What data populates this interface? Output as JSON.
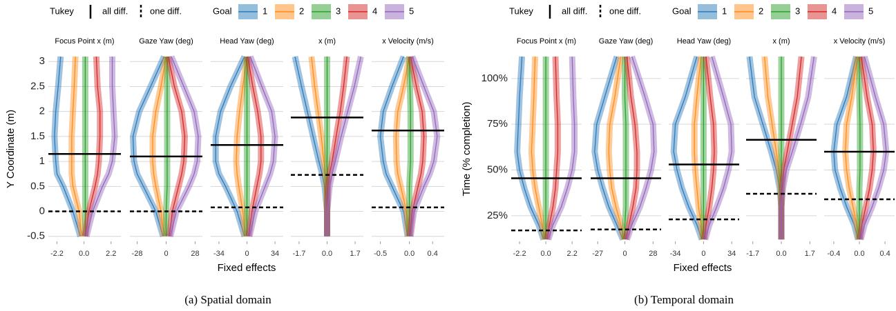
{
  "chart_data": [
    {
      "type": "line",
      "caption": "(a) Spatial domain",
      "y_label": "Y Coordinate (m)",
      "x_label": "Fixed effects",
      "legend": {
        "tukey": "Tukey",
        "all_diff": "all diff.",
        "one_diff": "one diff.",
        "goal": "Goal"
      },
      "series": [
        {
          "name": "1",
          "color": "#2b7bba"
        },
        {
          "name": "2",
          "color": "#ff8c1a"
        },
        {
          "name": "3",
          "color": "#2ca02c"
        },
        {
          "name": "4",
          "color": "#d62728"
        },
        {
          "name": "5",
          "color": "#9467bd"
        }
      ],
      "ylim": [
        -0.6,
        3.1
      ],
      "yticks": [
        -0.5,
        0,
        0.5,
        1,
        1.5,
        2,
        2.5,
        3
      ],
      "grid": true,
      "y": [
        -0.5,
        0,
        0.5,
        0.75,
        1,
        1.5,
        2,
        2.5,
        3.1
      ],
      "facets": [
        {
          "title": "Focus Point x (m)",
          "xlim": [
            -2.9,
            3.0
          ],
          "xticks": [
            -2.2,
            {
              "value": 0,
              "label": "0.0"
            },
            2.2
          ],
          "values": [
            [
              -0.3,
              -0.9,
              -1.7,
              -2.2,
              -2.3,
              -2.4,
              -2.3,
              -2.1,
              -1.9
            ],
            [
              -0.2,
              -0.4,
              -0.9,
              -1.0,
              -1.0,
              -1.0,
              -0.9,
              -0.8,
              -0.7
            ],
            [
              0.1,
              0.1,
              0.1,
              0.1,
              0.1,
              0.1,
              0.1,
              0.1,
              0.1
            ],
            [
              0.1,
              0.4,
              0.9,
              1.1,
              1.2,
              1.3,
              1.3,
              1.1,
              1.0
            ],
            [
              0.2,
              0.7,
              1.5,
              2.0,
              2.3,
              2.5,
              2.4,
              2.3,
              2.3
            ]
          ],
          "all_diff": 1.15,
          "one_diff": 0.0
        },
        {
          "title": "Gaze Yaw (deg)",
          "xlim": [
            -35,
            35
          ],
          "xticks": [
            -28,
            0,
            28
          ],
          "values": [
            [
              -3,
              -10,
              -22,
              -28,
              -31,
              -32,
              -26,
              -15,
              -2
            ],
            [
              -2,
              -5,
              -10,
              -12,
              -13,
              -13,
              -10,
              -5,
              0
            ],
            [
              0,
              0,
              1,
              1,
              1,
              1,
              1,
              1,
              1
            ],
            [
              3,
              6,
              12,
              15,
              17,
              18,
              15,
              8,
              2
            ],
            [
              4,
              10,
              22,
              27,
              30,
              31,
              27,
              17,
              5
            ]
          ],
          "all_diff": 1.1,
          "one_diff": 0.0
        },
        {
          "title": "Head Yaw (deg)",
          "xlim": [
            -44,
            44
          ],
          "xticks": [
            -34,
            0,
            34
          ],
          "values": [
            [
              -3,
              -12,
              -26,
              -34,
              -38,
              -38,
              -32,
              -20,
              -3
            ],
            [
              -2,
              -5,
              -10,
              -12,
              -13,
              -12,
              -9,
              -5,
              0
            ],
            [
              0,
              0,
              0,
              0,
              0,
              0,
              0,
              0,
              0
            ],
            [
              2,
              6,
              12,
              15,
              17,
              17,
              13,
              7,
              1
            ],
            [
              3,
              10,
              22,
              28,
              32,
              34,
              30,
              18,
              4
            ]
          ],
          "all_diff": 1.33,
          "one_diff": 0.08
        },
        {
          "title": "x (m)",
          "xlim": [
            -2.2,
            2.2
          ],
          "xticks": [
            -1.7,
            {
              "value": 0,
              "label": "0.0"
            },
            1.7
          ],
          "values": [
            [
              0,
              0,
              -0.15,
              -0.3,
              -0.5,
              -0.85,
              -1.2,
              -1.55,
              -1.95
            ],
            [
              0,
              0,
              -0.05,
              -0.1,
              -0.2,
              -0.35,
              -0.55,
              -0.75,
              -0.95
            ],
            [
              0,
              0,
              0,
              0,
              0,
              0,
              0,
              0,
              0
            ],
            [
              0,
              0,
              0.05,
              0.15,
              0.3,
              0.55,
              0.8,
              1.0,
              1.2
            ],
            [
              0,
              0,
              0.15,
              0.3,
              0.5,
              0.85,
              1.25,
              1.65,
              2.05
            ]
          ],
          "all_diff": 1.88,
          "one_diff": 0.73
        },
        {
          "title": "x Velocity (m/s)",
          "xlim": [
            -0.65,
            0.6
          ],
          "xticks": [
            -0.5,
            {
              "value": 0,
              "label": "0.0"
            },
            0.4
          ],
          "values": [
            [
              -0.03,
              -0.1,
              -0.3,
              -0.4,
              -0.45,
              -0.5,
              -0.45,
              -0.3,
              -0.1
            ],
            [
              -0.02,
              -0.05,
              -0.15,
              -0.2,
              -0.22,
              -0.23,
              -0.2,
              -0.1,
              0
            ],
            [
              0,
              0,
              0,
              0.01,
              0.02,
              0.02,
              0.02,
              0.01,
              0
            ],
            [
              0.01,
              0.05,
              0.15,
              0.2,
              0.23,
              0.25,
              0.22,
              0.12,
              0.02
            ],
            [
              0.02,
              0.08,
              0.25,
              0.35,
              0.42,
              0.48,
              0.42,
              0.25,
              0.05
            ]
          ],
          "all_diff": 1.62,
          "one_diff": 0.08
        }
      ]
    },
    {
      "type": "line",
      "caption": "(b) Temporal domain",
      "y_label": "Time (% completion)",
      "x_label": "Fixed effects",
      "legend": {
        "tukey": "Tukey",
        "all_diff": "all diff.",
        "one_diff": "one diff.",
        "goal": "Goal"
      },
      "series": [
        {
          "name": "1",
          "color": "#2b7bba"
        },
        {
          "name": "2",
          "color": "#ff8c1a"
        },
        {
          "name": "3",
          "color": "#2ca02c"
        },
        {
          "name": "4",
          "color": "#d62728"
        },
        {
          "name": "5",
          "color": "#9467bd"
        }
      ],
      "ylim": [
        11,
        112
      ],
      "yticks": [
        {
          "value": 25,
          "label": "25%"
        },
        {
          "value": 50,
          "label": "50%"
        },
        {
          "value": 75,
          "label": "75%"
        },
        {
          "value": 100,
          "label": "100%"
        }
      ],
      "grid": true,
      "y": [
        12,
        20,
        30,
        40,
        50,
        60,
        75,
        90,
        112
      ],
      "facets": [
        {
          "title": "Focus Point x (m)",
          "xlim": [
            -2.9,
            3.0
          ],
          "xticks": [
            -2.2,
            {
              "value": 0,
              "label": "0.0"
            },
            2.2
          ],
          "values": [
            [
              -0.2,
              -0.6,
              -1.3,
              -1.8,
              -2.2,
              -2.4,
              -2.3,
              -2.2,
              -2.0
            ],
            [
              -0.1,
              -0.3,
              -0.6,
              -0.9,
              -1.1,
              -1.2,
              -1.1,
              -1.0,
              -0.9
            ],
            [
              0,
              0,
              0,
              0,
              0,
              0,
              0,
              0,
              0
            ],
            [
              0.1,
              0.3,
              0.6,
              0.8,
              0.9,
              1.0,
              1.0,
              0.9,
              0.8
            ],
            [
              0.2,
              0.6,
              1.3,
              1.8,
              2.2,
              2.4,
              2.4,
              2.3,
              2.2
            ]
          ],
          "all_diff": 45.5,
          "one_diff": 17
        },
        {
          "title": "Gaze Yaw (deg)",
          "xlim": [
            -34,
            36
          ],
          "xticks": [
            -27,
            0,
            28
          ],
          "values": [
            [
              -2,
              -8,
              -16,
              -22,
              -27,
              -30,
              -28,
              -20,
              -8
            ],
            [
              -1,
              -4,
              -9,
              -13,
              -15,
              -16,
              -15,
              -10,
              -4
            ],
            [
              0,
              0,
              1,
              1,
              1,
              1,
              1,
              0,
              0
            ],
            [
              1,
              4,
              8,
              11,
              12,
              12,
              10,
              6,
              2
            ],
            [
              2,
              7,
              15,
              21,
              26,
              29,
              28,
              20,
              7
            ]
          ],
          "all_diff": 45.5,
          "one_diff": 17.5
        },
        {
          "title": "Head Yaw (deg)",
          "xlim": [
            -42,
            43
          ],
          "xticks": [
            -34,
            0,
            34
          ],
          "values": [
            [
              -2,
              -8,
              -18,
              -26,
              -32,
              -36,
              -34,
              -22,
              -8
            ],
            [
              -1,
              -3,
              -6,
              -8,
              -10,
              -11,
              -11,
              -8,
              -3
            ],
            [
              0,
              0,
              0,
              0,
              0,
              0,
              0,
              0,
              0
            ],
            [
              1,
              3,
              7,
              10,
              12,
              13,
              12,
              8,
              3
            ],
            [
              2,
              7,
              16,
              24,
              30,
              34,
              33,
              24,
              10
            ]
          ],
          "all_diff": 53,
          "one_diff": 23
        },
        {
          "title": "x (m)",
          "xlim": [
            -2.1,
            2.1
          ],
          "xticks": [
            -1.7,
            {
              "value": 0,
              "label": "0.0"
            },
            1.7
          ],
          "values": [
            [
              0,
              0,
              0,
              -0.1,
              -0.3,
              -0.6,
              -1.1,
              -1.6,
              -1.9
            ],
            [
              0,
              0,
              0,
              -0.05,
              -0.15,
              -0.3,
              -0.55,
              -0.8,
              -1.0
            ],
            [
              0,
              0,
              0,
              0,
              0,
              0,
              0,
              0,
              0
            ],
            [
              0,
              0,
              0,
              0.05,
              0.15,
              0.35,
              0.65,
              0.95,
              1.2
            ],
            [
              0,
              0,
              0,
              0.1,
              0.3,
              0.65,
              1.15,
              1.6,
              1.95
            ]
          ],
          "all_diff": 66.5,
          "one_diff": 37
        },
        {
          "title": "x Velocity (m/s)",
          "xlim": [
            -0.55,
            0.55
          ],
          "xticks": [
            -0.4,
            {
              "value": 0,
              "label": "0.0"
            },
            0.4
          ],
          "values": [
            [
              -0.02,
              -0.08,
              -0.2,
              -0.3,
              -0.38,
              -0.4,
              -0.35,
              -0.2,
              -0.05
            ],
            [
              -0.01,
              -0.04,
              -0.1,
              -0.16,
              -0.2,
              -0.22,
              -0.2,
              -0.12,
              -0.03
            ],
            [
              0,
              0,
              0,
              0,
              0.01,
              0.01,
              0.01,
              0,
              0
            ],
            [
              0.01,
              0.04,
              0.1,
              0.16,
              0.2,
              0.22,
              0.2,
              0.12,
              0.03
            ],
            [
              0.02,
              0.08,
              0.2,
              0.3,
              0.38,
              0.42,
              0.38,
              0.25,
              0.08
            ]
          ],
          "all_diff": 60,
          "one_diff": 34
        }
      ]
    }
  ]
}
